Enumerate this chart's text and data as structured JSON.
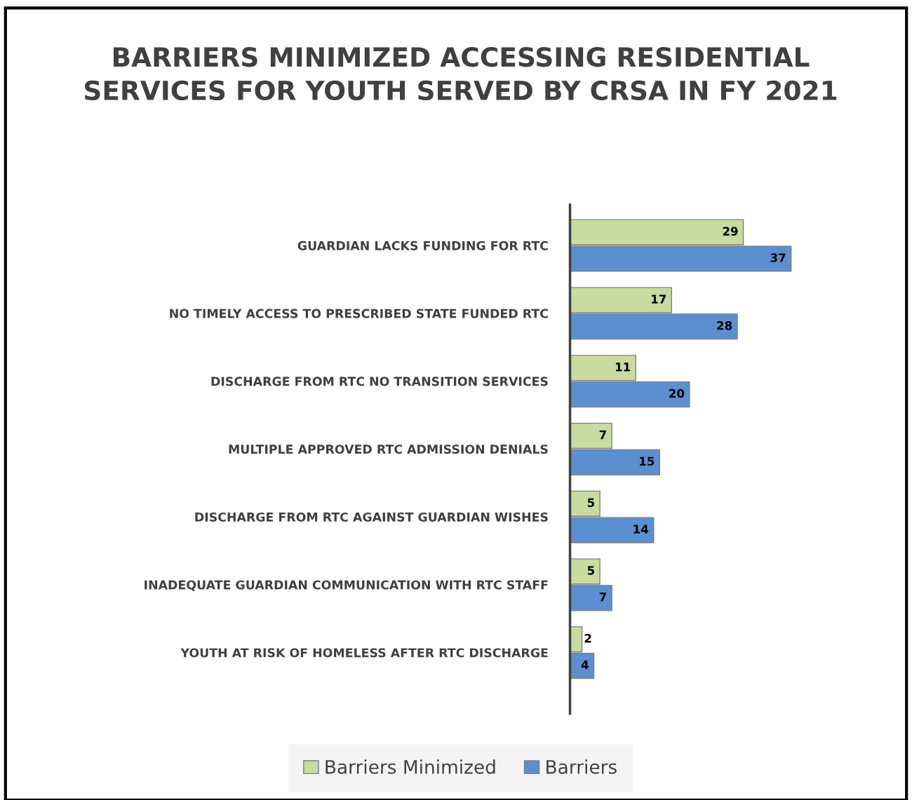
{
  "chart_data": {
    "type": "bar",
    "orientation": "horizontal",
    "title": "BARRIERS MINIMIZED ACCESSING RESIDENTIAL\nSERVICES FOR YOUTH SERVED BY CRSA IN FY 2021",
    "categories": [
      "GUARDIAN LACKS FUNDING FOR RTC",
      "NO TIMELY ACCESS TO PRESCRIBED STATE FUNDED RTC",
      "DISCHARGE FROM RTC NO TRANSITION SERVICES",
      "MULTIPLE APPROVED RTC ADMISSION DENIALS",
      "DISCHARGE FROM RTC AGAINST GUARDIAN WISHES",
      "INADEQUATE GUARDIAN COMMUNICATION WITH RTC STAFF",
      "YOUTH AT RISK OF HOMELESS AFTER RTC DISCHARGE"
    ],
    "series": [
      {
        "name": "Barriers Minimized",
        "color": "#c9dba0",
        "values": [
          29,
          17,
          11,
          7,
          5,
          5,
          2
        ]
      },
      {
        "name": "Barriers",
        "color": "#5b8fd0",
        "values": [
          37,
          28,
          20,
          15,
          14,
          7,
          4
        ]
      }
    ],
    "xlim": [
      0,
      56
    ],
    "tick_labels": "y",
    "data_labels": true,
    "legend": "bottom",
    "grid": false
  }
}
